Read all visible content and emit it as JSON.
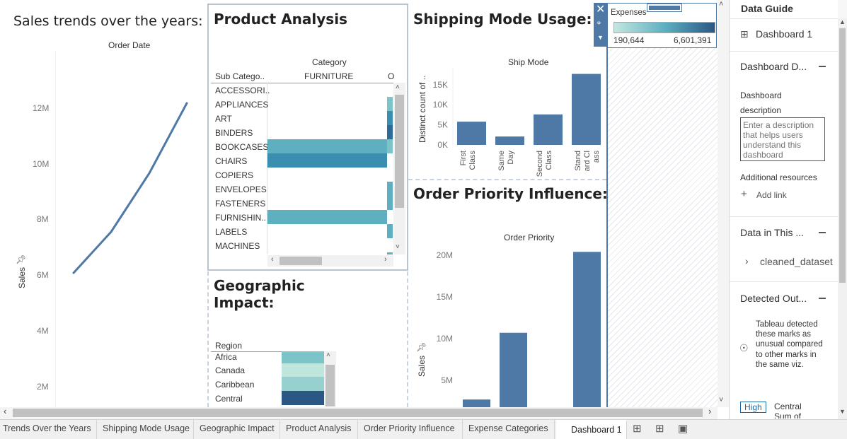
{
  "sales_trend": {
    "title": "Sales trends over the years:",
    "column_header": "Order Date",
    "y_axis_label": "Sales",
    "y_ticks": [
      "12M",
      "10M",
      "8M",
      "6M",
      "4M",
      "2M"
    ]
  },
  "product_analysis": {
    "title": "Product Analysis",
    "category_header": "Category",
    "subcat_header": "Sub Catego..",
    "col_furniture": "FURNITURE",
    "col_next": "O",
    "rows": [
      "ACCESSORI..",
      "APPLIANCES",
      "ART",
      "BINDERS",
      "BOOKCASES",
      "CHAIRS",
      "COPIERS",
      "ENVELOPES",
      "FASTENERS",
      "FURNISHIN..",
      "LABELS",
      "MACHINES"
    ]
  },
  "shipping": {
    "title": "Shipping Mode Usage:",
    "column_header": "Ship Mode",
    "y_axis_label": "Distinct count of ..",
    "y_ticks": [
      "15K",
      "10K",
      "5K",
      "0K"
    ],
    "chart_data": {
      "type": "bar",
      "xlabel": "Ship Mode",
      "ylabel": "Distinct count of ..",
      "categories": [
        "First Class",
        "Same Day",
        "Second Class",
        "Standard Class"
      ],
      "values": [
        5800,
        2100,
        7600,
        17700
      ],
      "ylim": [
        0,
        18500
      ],
      "tick_values": [
        15000,
        10000,
        5000,
        0
      ],
      "color": "#4e79a7"
    }
  },
  "order_priority": {
    "title": "Order Priority Influence:",
    "column_header": "Order Priority",
    "y_axis_label": "Sales",
    "y_ticks": [
      "20M",
      "15M",
      "10M",
      "5M"
    ],
    "chart_data": {
      "type": "bar",
      "xlabel": "Order Priority",
      "ylabel": "Sales",
      "values": [
        2700000,
        10700000,
        20400000
      ],
      "tick_values": [
        20000000,
        15000000,
        10000000,
        5000000
      ],
      "color": "#4e79a7"
    }
  },
  "geographic": {
    "title_line1": "Geographic",
    "title_line2": "Impact:",
    "region_header": "Region",
    "rows": [
      "Africa",
      "Canada",
      "Caribbean",
      "Central"
    ]
  },
  "legend": {
    "title": "Expenses",
    "min": "190,644",
    "max": "6,601,391",
    "color_low": "#c4e6e0",
    "color_high": "#2a5783"
  },
  "data_guide": {
    "title": "Data Guide",
    "dashboard_name": "Dashboard 1",
    "section_description": "Dashboard D...",
    "description_label": "Dashboard description",
    "description_placeholder": "Enter a description that helps users understand this dashboard",
    "additional_resources": "Additional resources",
    "add_link": "Add link",
    "section_data": "Data in This ...",
    "datasource": "cleaned_dataset",
    "section_outliers": "Detected Out...",
    "outlier_text": "Tableau detected these marks as unusual compared to other marks in the same viz.",
    "high_badge": "High",
    "outlier_item": "Central",
    "outlier_item2": "Sum of"
  },
  "tabs": [
    "Trends Over the Years",
    "Shipping Mode Usage",
    "Geographic Impact",
    "Product Analysis",
    "Order Priority Influence",
    "Expense Categories",
    "Dashboard 1"
  ]
}
